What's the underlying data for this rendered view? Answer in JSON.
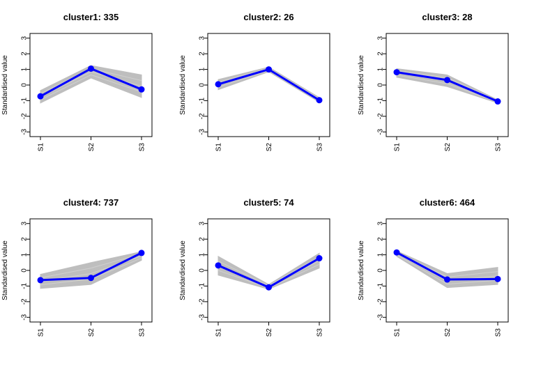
{
  "chart_data": [
    {
      "type": "line",
      "title": "cluster1: 335",
      "ylabel": "Standardised value",
      "categories": [
        "S1",
        "S2",
        "S3"
      ],
      "ylim": [
        -3.3,
        3.3
      ],
      "yticks": [
        3,
        2,
        1,
        0,
        -1,
        -2,
        -3
      ],
      "centroid": [
        -0.72,
        1.05,
        -0.28
      ],
      "band_upper": [
        -0.35,
        1.25,
        0.65
      ],
      "band_lower": [
        -1.15,
        0.45,
        -0.8
      ],
      "series_color": "#0000ff",
      "band_color": "#bebebe"
    },
    {
      "type": "line",
      "title": "cluster2: 26",
      "ylabel": "Standardised value",
      "categories": [
        "S1",
        "S2",
        "S3"
      ],
      "ylim": [
        -3.3,
        3.3
      ],
      "yticks": [
        3,
        2,
        1,
        0,
        -1,
        -2,
        -3
      ],
      "centroid": [
        0.05,
        1.0,
        -0.97
      ],
      "band_upper": [
        0.35,
        1.15,
        -0.8
      ],
      "band_lower": [
        -0.3,
        0.85,
        -1.1
      ],
      "series_color": "#0000ff",
      "band_color": "#bebebe"
    },
    {
      "type": "line",
      "title": "cluster3: 28",
      "ylabel": "Standardised value",
      "categories": [
        "S1",
        "S2",
        "S3"
      ],
      "ylim": [
        -3.3,
        3.3
      ],
      "yticks": [
        3,
        2,
        1,
        0,
        -1,
        -2,
        -3
      ],
      "centroid": [
        0.82,
        0.32,
        -1.05
      ],
      "band_upper": [
        1.05,
        0.65,
        -0.95
      ],
      "band_lower": [
        0.5,
        -0.1,
        -1.15
      ],
      "series_color": "#0000ff",
      "band_color": "#bebebe"
    },
    {
      "type": "line",
      "title": "cluster4: 737",
      "ylabel": "Standardised value",
      "categories": [
        "S1",
        "S2",
        "S3"
      ],
      "ylim": [
        -3.3,
        3.3
      ],
      "yticks": [
        3,
        2,
        1,
        0,
        -1,
        -2,
        -3
      ],
      "centroid": [
        -0.62,
        -0.48,
        1.12
      ],
      "band_upper": [
        -0.25,
        0.5,
        1.2
      ],
      "band_lower": [
        -1.15,
        -0.9,
        0.65
      ],
      "series_color": "#0000ff",
      "band_color": "#bebebe"
    },
    {
      "type": "line",
      "title": "cluster5: 74",
      "ylabel": "Standardised value",
      "categories": [
        "S1",
        "S2",
        "S3"
      ],
      "ylim": [
        -3.3,
        3.3
      ],
      "yticks": [
        3,
        2,
        1,
        0,
        -1,
        -2,
        -3
      ],
      "centroid": [
        0.32,
        -1.08,
        0.78
      ],
      "band_upper": [
        0.9,
        -0.9,
        1.1
      ],
      "band_lower": [
        -0.3,
        -1.2,
        0.15
      ],
      "series_color": "#0000ff",
      "band_color": "#bebebe"
    },
    {
      "type": "line",
      "title": "cluster6: 464",
      "ylabel": "Standardised value",
      "categories": [
        "S1",
        "S2",
        "S3"
      ],
      "ylim": [
        -3.3,
        3.3
      ],
      "yticks": [
        3,
        2,
        1,
        0,
        -1,
        -2,
        -3
      ],
      "centroid": [
        1.15,
        -0.58,
        -0.55
      ],
      "band_upper": [
        1.25,
        -0.2,
        0.2
      ],
      "band_lower": [
        0.9,
        -1.1,
        -0.9
      ],
      "series_color": "#0000ff",
      "band_color": "#bebebe"
    }
  ]
}
